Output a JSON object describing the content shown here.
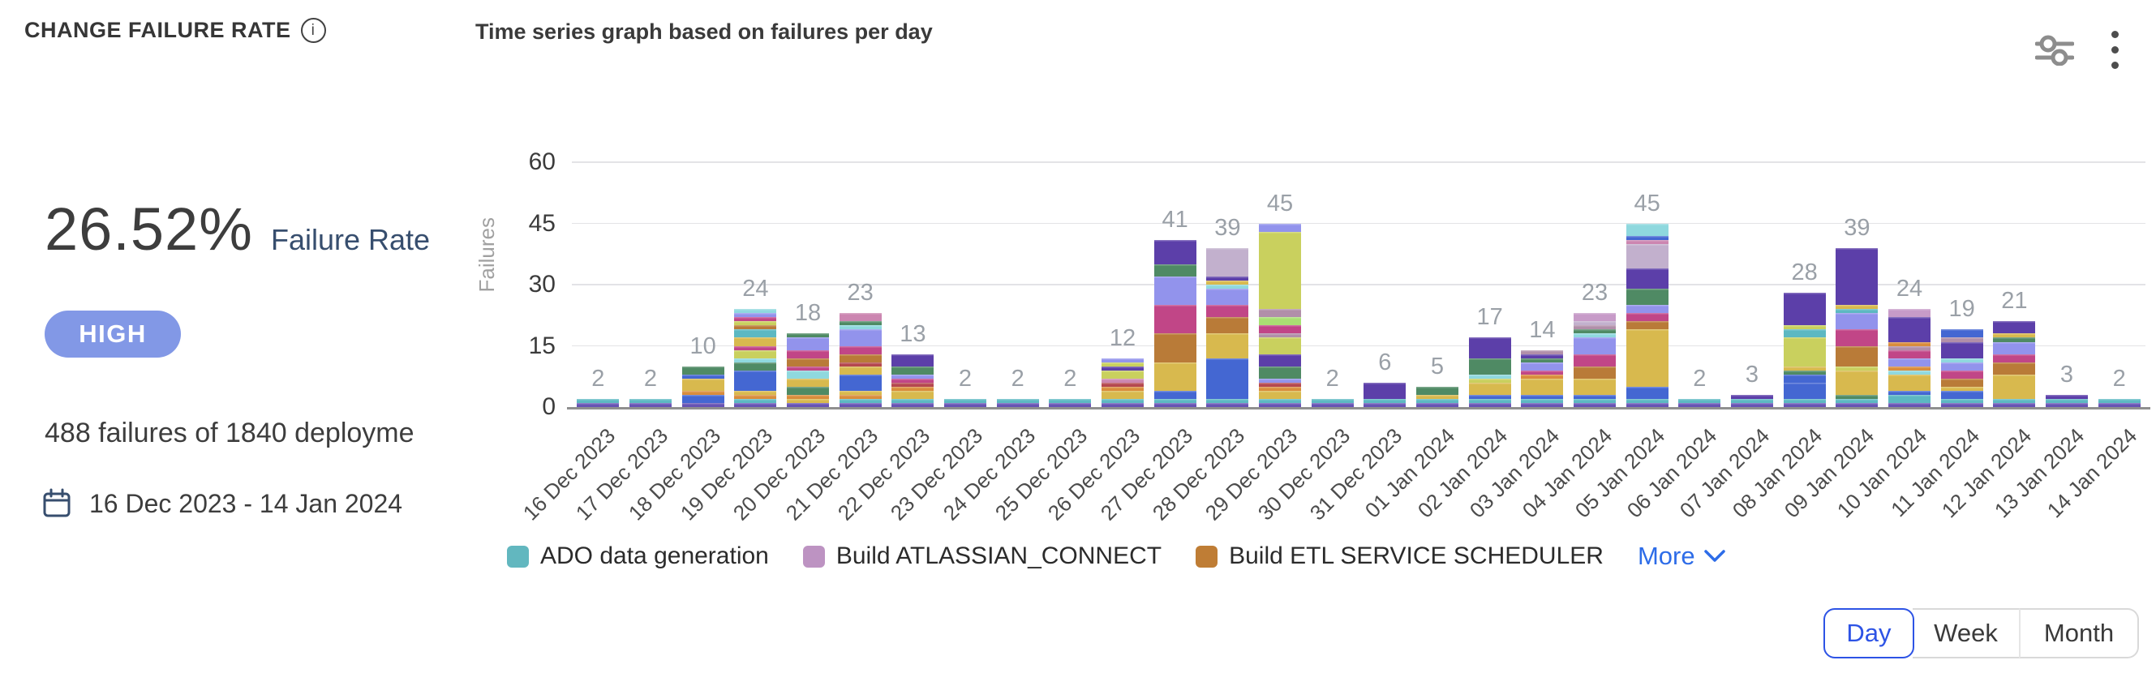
{
  "header": {
    "title": "CHANGE FAILURE RATE",
    "info_icon": "i",
    "chart_title": "Time series graph based on failures per day"
  },
  "stats": {
    "rate": "26.52%",
    "rate_label": "Failure Rate",
    "severity": "HIGH",
    "summary": "488 failures of 1840 deployme",
    "date_range": "16 Dec 2023 - 14 Jan 2024"
  },
  "ui_colors": {
    "badge_bg": "#8298e6",
    "accent_blue": "#2d53e5",
    "link_blue": "#2d6ce8",
    "navy_text": "#374e6e",
    "muted_label": "#9aa0a7"
  },
  "controls": {
    "options": [
      "Day",
      "Week",
      "Month"
    ],
    "selected": "Day"
  },
  "chart_data": {
    "type": "bar",
    "stacked": true,
    "title": "Time series graph based on failures per day",
    "ylabel": "Failures",
    "xlabel": "",
    "ylim": [
      0,
      60
    ],
    "yticks": [
      0,
      15,
      30,
      45,
      60
    ],
    "grid": true,
    "legend_position": "bottom",
    "categories": [
      "16 Dec 2023",
      "17 Dec 2023",
      "18 Dec 2023",
      "19 Dec 2023",
      "20 Dec 2023",
      "21 Dec 2023",
      "22 Dec 2023",
      "23 Dec 2023",
      "24 Dec 2023",
      "25 Dec 2023",
      "26 Dec 2023",
      "27 Dec 2023",
      "28 Dec 2023",
      "29 Dec 2023",
      "30 Dec 2023",
      "31 Dec 2023",
      "01 Jan 2024",
      "02 Jan 2024",
      "03 Jan 2024",
      "04 Jan 2024",
      "05 Jan 2024",
      "06 Jan 2024",
      "07 Jan 2024",
      "08 Jan 2024",
      "09 Jan 2024",
      "10 Jan 2024",
      "11 Jan 2024",
      "12 Jan 2024",
      "13 Jan 2024",
      "14 Jan 2024"
    ],
    "totals": [
      2,
      2,
      10,
      24,
      18,
      23,
      13,
      2,
      2,
      2,
      12,
      41,
      39,
      45,
      2,
      6,
      5,
      17,
      14,
      23,
      45,
      2,
      3,
      28,
      39,
      24,
      19,
      21,
      3,
      2
    ],
    "palette": {
      "purple": "#6753b4",
      "teal": "#5cb8c2",
      "blue": "#4467d2",
      "gold": "#d8b94e",
      "orange": "#d98d3c",
      "brown": "#b97b38",
      "magenta": "#c14687",
      "periwinkle": "#9293ec",
      "green": "#4f8a64",
      "darkpurple": "#5c3fa9",
      "lime": "#c9d05e",
      "mauve": "#c79bc8",
      "graylav": "#c2b0cd",
      "lightgreen": "#a9e073",
      "graypink": "#b18fa9",
      "cyan": "#8fd8de",
      "red": "#b5484f",
      "pink": "#cc86b1"
    },
    "bars": [
      {
        "segments": [
          [
            "purple",
            1
          ],
          [
            "teal",
            1
          ]
        ]
      },
      {
        "segments": [
          [
            "purple",
            1
          ],
          [
            "teal",
            1
          ]
        ]
      },
      {
        "segments": [
          [
            "purple",
            1
          ],
          [
            "blue",
            2
          ],
          [
            "orange",
            1
          ],
          [
            "gold",
            3
          ],
          [
            "blue",
            1
          ],
          [
            "green",
            2
          ]
        ]
      },
      {
        "segments": [
          [
            "purple",
            1
          ],
          [
            "teal",
            1
          ],
          [
            "orange",
            1
          ],
          [
            "gold",
            1
          ],
          [
            "blue",
            5
          ],
          [
            "green",
            2
          ],
          [
            "cyan",
            1
          ],
          [
            "lime",
            2
          ],
          [
            "magenta",
            1
          ],
          [
            "gold",
            2
          ],
          [
            "teal",
            2
          ],
          [
            "brown",
            1
          ],
          [
            "lime",
            1
          ],
          [
            "magenta",
            1
          ],
          [
            "periwinkle",
            1
          ],
          [
            "cyan",
            1
          ]
        ]
      },
      {
        "segments": [
          [
            "purple",
            1
          ],
          [
            "gold",
            1
          ],
          [
            "orange",
            1
          ],
          [
            "green",
            2
          ],
          [
            "gold",
            2
          ],
          [
            "cyan",
            2
          ],
          [
            "magenta",
            1
          ],
          [
            "brown",
            2
          ],
          [
            "magenta",
            2
          ],
          [
            "periwinkle",
            3
          ],
          [
            "green",
            1
          ]
        ]
      },
      {
        "segments": [
          [
            "purple",
            1
          ],
          [
            "teal",
            1
          ],
          [
            "orange",
            1
          ],
          [
            "gold",
            1
          ],
          [
            "blue",
            4
          ],
          [
            "gold",
            2
          ],
          [
            "red",
            1
          ],
          [
            "brown",
            2
          ],
          [
            "magenta",
            2
          ],
          [
            "periwinkle",
            4
          ],
          [
            "cyan",
            1
          ],
          [
            "green",
            1
          ],
          [
            "pink",
            2
          ]
        ]
      },
      {
        "segments": [
          [
            "purple",
            1
          ],
          [
            "teal",
            1
          ],
          [
            "gold",
            2
          ],
          [
            "orange",
            1
          ],
          [
            "red",
            1
          ],
          [
            "magenta",
            1
          ],
          [
            "periwinkle",
            1
          ],
          [
            "green",
            2
          ],
          [
            "darkpurple",
            3
          ]
        ]
      },
      {
        "segments": [
          [
            "purple",
            1
          ],
          [
            "teal",
            1
          ]
        ]
      },
      {
        "segments": [
          [
            "purple",
            1
          ],
          [
            "teal",
            1
          ]
        ]
      },
      {
        "segments": [
          [
            "purple",
            1
          ],
          [
            "teal",
            1
          ]
        ]
      },
      {
        "segments": [
          [
            "purple",
            1
          ],
          [
            "teal",
            1
          ],
          [
            "gold",
            2
          ],
          [
            "orange",
            1
          ],
          [
            "red",
            1
          ],
          [
            "pink",
            1
          ],
          [
            "lime",
            2
          ],
          [
            "darkpurple",
            1
          ],
          [
            "lime",
            1
          ],
          [
            "periwinkle",
            1
          ]
        ]
      },
      {
        "segments": [
          [
            "purple",
            1
          ],
          [
            "teal",
            1
          ],
          [
            "blue",
            2
          ],
          [
            "gold",
            7
          ],
          [
            "brown",
            7
          ],
          [
            "magenta",
            7
          ],
          [
            "periwinkle",
            7
          ],
          [
            "green",
            3
          ],
          [
            "darkpurple",
            6
          ]
        ]
      },
      {
        "segments": [
          [
            "purple",
            1
          ],
          [
            "teal",
            1
          ],
          [
            "blue",
            10
          ],
          [
            "gold",
            6
          ],
          [
            "brown",
            4
          ],
          [
            "magenta",
            3
          ],
          [
            "periwinkle",
            4
          ],
          [
            "cyan",
            1
          ],
          [
            "gold",
            1
          ],
          [
            "darkpurple",
            1
          ],
          [
            "graylav",
            7
          ]
        ]
      },
      {
        "segments": [
          [
            "purple",
            1
          ],
          [
            "teal",
            1
          ],
          [
            "gold",
            2
          ],
          [
            "orange",
            1
          ],
          [
            "red",
            1
          ],
          [
            "periwinkle",
            1
          ],
          [
            "green",
            3
          ],
          [
            "darkpurple",
            3
          ],
          [
            "lime",
            4
          ],
          [
            "graypink",
            1
          ],
          [
            "magenta",
            2
          ],
          [
            "lightgreen",
            2
          ],
          [
            "graypink",
            2
          ],
          [
            "lime",
            19
          ],
          [
            "periwinkle",
            2
          ]
        ]
      },
      {
        "segments": [
          [
            "purple",
            1
          ],
          [
            "teal",
            1
          ]
        ]
      },
      {
        "segments": [
          [
            "purple",
            1
          ],
          [
            "teal",
            1
          ],
          [
            "darkpurple",
            4
          ]
        ]
      },
      {
        "segments": [
          [
            "purple",
            1
          ],
          [
            "teal",
            1
          ],
          [
            "gold",
            1
          ],
          [
            "green",
            2
          ]
        ]
      },
      {
        "segments": [
          [
            "purple",
            1
          ],
          [
            "teal",
            1
          ],
          [
            "blue",
            1
          ],
          [
            "gold",
            3
          ],
          [
            "lime",
            1
          ],
          [
            "cyan",
            1
          ],
          [
            "green",
            4
          ],
          [
            "darkpurple",
            5
          ]
        ]
      },
      {
        "segments": [
          [
            "purple",
            1
          ],
          [
            "teal",
            1
          ],
          [
            "blue",
            1
          ],
          [
            "gold",
            4
          ],
          [
            "orange",
            1
          ],
          [
            "magenta",
            1
          ],
          [
            "periwinkle",
            2
          ],
          [
            "green",
            1
          ],
          [
            "darkpurple",
            1
          ],
          [
            "graypink",
            1
          ]
        ]
      },
      {
        "segments": [
          [
            "purple",
            1
          ],
          [
            "teal",
            1
          ],
          [
            "blue",
            1
          ],
          [
            "gold",
            4
          ],
          [
            "brown",
            3
          ],
          [
            "magenta",
            3
          ],
          [
            "periwinkle",
            4
          ],
          [
            "cyan",
            1
          ],
          [
            "green",
            1
          ],
          [
            "graypink",
            1
          ],
          [
            "graylav",
            1
          ],
          [
            "mauve",
            2
          ]
        ]
      },
      {
        "segments": [
          [
            "purple",
            1
          ],
          [
            "teal",
            1
          ],
          [
            "blue",
            3
          ],
          [
            "gold",
            14
          ],
          [
            "brown",
            2
          ],
          [
            "magenta",
            2
          ],
          [
            "periwinkle",
            2
          ],
          [
            "green",
            4
          ],
          [
            "darkpurple",
            5
          ],
          [
            "graylav",
            6
          ],
          [
            "pink",
            1
          ],
          [
            "blue",
            1
          ],
          [
            "cyan",
            3
          ]
        ]
      },
      {
        "segments": [
          [
            "purple",
            1
          ],
          [
            "teal",
            1
          ]
        ]
      },
      {
        "segments": [
          [
            "purple",
            1
          ],
          [
            "teal",
            1
          ],
          [
            "darkpurple",
            1
          ]
        ]
      },
      {
        "segments": [
          [
            "purple",
            1
          ],
          [
            "teal",
            1
          ],
          [
            "blue",
            4
          ],
          [
            "blue",
            2
          ],
          [
            "green",
            1
          ],
          [
            "gold",
            1
          ],
          [
            "lime",
            7
          ],
          [
            "teal",
            2
          ],
          [
            "lime",
            1
          ],
          [
            "darkpurple",
            8
          ]
        ]
      },
      {
        "segments": [
          [
            "purple",
            1
          ],
          [
            "teal",
            1
          ],
          [
            "green",
            1
          ],
          [
            "gold",
            6
          ],
          [
            "lime",
            1
          ],
          [
            "brown",
            5
          ],
          [
            "magenta",
            4
          ],
          [
            "periwinkle",
            4
          ],
          [
            "teal",
            1
          ],
          [
            "gold",
            1
          ],
          [
            "darkpurple",
            14
          ]
        ]
      },
      {
        "segments": [
          [
            "purple",
            1
          ],
          [
            "teal",
            2
          ],
          [
            "blue",
            1
          ],
          [
            "gold",
            4
          ],
          [
            "cyan",
            1
          ],
          [
            "orange",
            1
          ],
          [
            "periwinkle",
            2
          ],
          [
            "magenta",
            2
          ],
          [
            "graypink",
            1
          ],
          [
            "orange",
            1
          ],
          [
            "darkpurple",
            6
          ],
          [
            "mauve",
            2
          ]
        ]
      },
      {
        "segments": [
          [
            "purple",
            1
          ],
          [
            "teal",
            1
          ],
          [
            "blue",
            2
          ],
          [
            "gold",
            1
          ],
          [
            "brown",
            2
          ],
          [
            "magenta",
            2
          ],
          [
            "periwinkle",
            2
          ],
          [
            "cyan",
            1
          ],
          [
            "darkpurple",
            4
          ],
          [
            "graypink",
            1
          ],
          [
            "blue",
            2
          ]
        ]
      },
      {
        "segments": [
          [
            "purple",
            1
          ],
          [
            "teal",
            1
          ],
          [
            "gold",
            6
          ],
          [
            "brown",
            3
          ],
          [
            "magenta",
            2
          ],
          [
            "periwinkle",
            3
          ],
          [
            "green",
            1
          ],
          [
            "gold",
            1
          ],
          [
            "darkpurple",
            3
          ]
        ]
      },
      {
        "segments": [
          [
            "purple",
            1
          ],
          [
            "teal",
            1
          ],
          [
            "darkpurple",
            1
          ]
        ]
      },
      {
        "segments": [
          [
            "purple",
            1
          ],
          [
            "teal",
            1
          ]
        ]
      }
    ],
    "legend": [
      {
        "label": "ADO data generation",
        "color": "#62b7bf"
      },
      {
        "label": "Build ATLASSIAN_CONNECT",
        "color": "#bd93c2"
      },
      {
        "label": "Build ETL SERVICE SCHEDULER",
        "color": "#bf7d35"
      }
    ],
    "more_label": "More"
  }
}
